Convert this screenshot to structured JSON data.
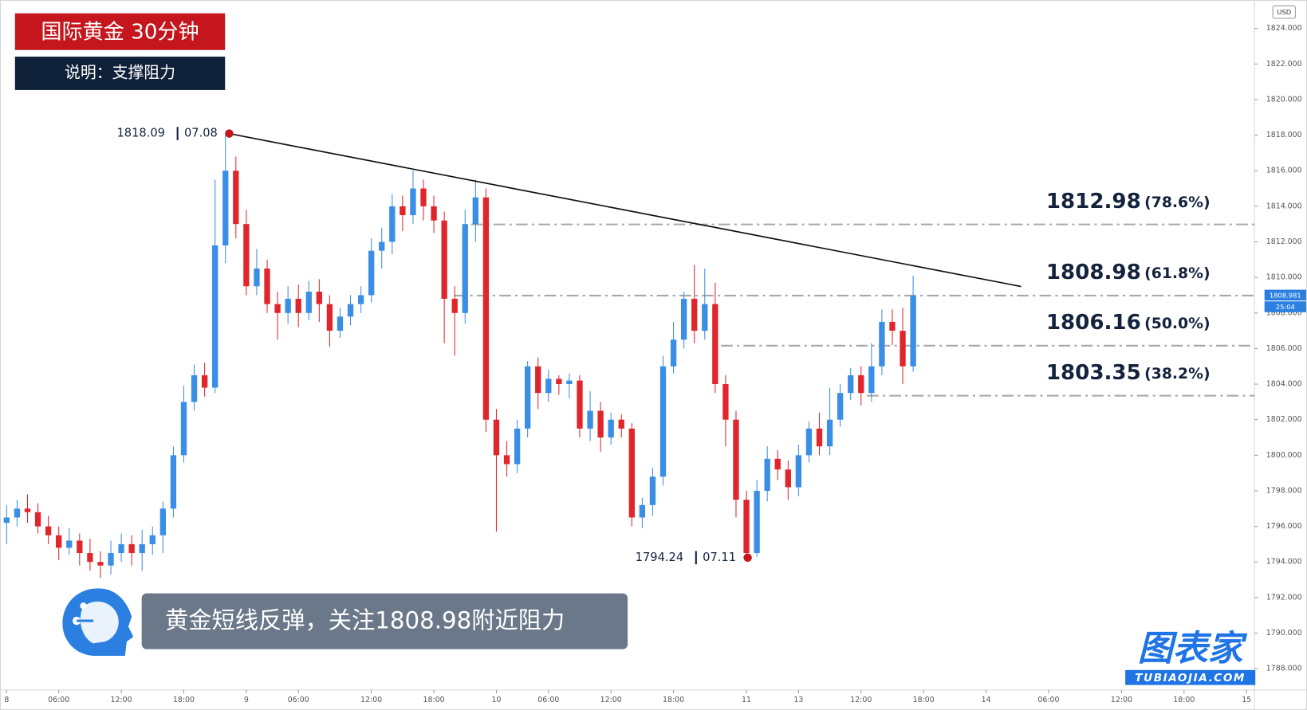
{
  "chart_data": {
    "type": "candlestick",
    "title": "国际黄金 30分钟",
    "subtitle": "说明：支撑阻力",
    "caption": "黄金短线反弹，关注1808.98附近阻力",
    "currency": "USD",
    "countdown": "25:04",
    "last_price": 1808.981,
    "logo": {
      "name": "图表家",
      "url": "TUBIAOJIA.COM"
    },
    "annotations": [
      {
        "date": "07.08"
      },
      {
        "date": "07.11"
      }
    ],
    "up_color": "#3a8ee6",
    "down_color": "#e0262c",
    "trendline": {
      "start": 1818.09,
      "end": 1809.49
    },
    "levels": [
      {
        "value": 1812.98,
        "ratio": "(78.6%)"
      },
      {
        "value": 1808.98,
        "ratio": "(61.8%)"
      },
      {
        "value": 1806.16,
        "ratio": "(50.0%)"
      },
      {
        "value": 1803.35,
        "ratio": "(38.2%)"
      }
    ],
    "ylim": [
      1786.8,
      1825.6
    ],
    "yticks": [
      {
        "value": 1788,
        "label": "1788.000"
      },
      {
        "value": 1790,
        "label": "1790.000"
      },
      {
        "value": 1792,
        "label": "1792.000"
      },
      {
        "value": 1794,
        "label": "1794.000"
      },
      {
        "value": 1796,
        "label": "1796.000"
      },
      {
        "value": 1798,
        "label": "1798.000"
      },
      {
        "value": 1800,
        "label": "1800.000"
      },
      {
        "value": 1802,
        "label": "1802.000"
      },
      {
        "value": 1804,
        "label": "1804.000"
      },
      {
        "value": 1806,
        "label": "1806.000"
      },
      {
        "value": 1808,
        "label": "1808.000"
      },
      {
        "value": 1810,
        "label": "1810.000"
      },
      {
        "value": 1812,
        "label": "1812.000"
      },
      {
        "value": 1814,
        "label": "1814.000"
      },
      {
        "value": 1816,
        "label": "1816.000"
      },
      {
        "value": 1818,
        "label": "1818.000"
      },
      {
        "value": 1820,
        "label": "1820.000"
      },
      {
        "value": 1822,
        "label": "1822.000"
      },
      {
        "value": 1824,
        "label": "1824.000"
      }
    ],
    "categories": [
      "8",
      null,
      null,
      null,
      null,
      "06:00",
      null,
      null,
      null,
      null,
      null,
      "12:00",
      null,
      null,
      null,
      null,
      null,
      "18:00",
      null,
      null,
      null,
      null,
      null,
      "9",
      null,
      null,
      null,
      null,
      "06:00",
      null,
      null,
      null,
      null,
      null,
      null,
      "12:00",
      null,
      null,
      null,
      null,
      null,
      "18:00",
      null,
      null,
      null,
      null,
      null,
      "10",
      null,
      null,
      null,
      null,
      "06:00",
      null,
      null,
      null,
      null,
      null,
      "12:00",
      null,
      null,
      null,
      null,
      null,
      "18:00",
      null,
      null,
      null,
      null,
      null,
      null,
      "11",
      null,
      null,
      null,
      null,
      "13",
      null,
      null,
      null,
      null,
      null,
      "12:00",
      null,
      null,
      null,
      null,
      null,
      "18:00",
      null,
      null,
      null,
      null,
      null,
      "14",
      null,
      null,
      null,
      null,
      null,
      "06:00",
      null,
      null,
      null,
      null,
      null,
      null,
      "12:00",
      null,
      null,
      null,
      null,
      null,
      "18:00",
      null,
      null,
      null,
      null,
      null,
      "15"
    ],
    "open": [
      1796.2,
      1796.5,
      1797,
      1796.8,
      1796,
      1795.5,
      1794.8,
      1795.2,
      1794.5,
      1794,
      1793.8,
      1794.5,
      1795,
      1794.5,
      1795,
      1795.5,
      1797,
      1800,
      1803,
      1804.5,
      1803.8,
      1811.8,
      1816,
      1813,
      1809.5,
      1810.5,
      1808.5,
      1808,
      1808.8,
      1808,
      1809.2,
      1808.5,
      1807,
      1807.8,
      1808.5,
      1809,
      1811.5,
      1812,
      1814,
      1813.5,
      1815,
      1814,
      1813.2,
      1808.8,
      1808,
      1813,
      1814.5,
      1802,
      1800,
      1799.5,
      1801.5,
      1805,
      1803.5,
      1804.3,
      1804,
      1804.2,
      1801.5,
      1802.5,
      1801,
      1802,
      1801.5,
      1796.5,
      1797.2,
      1798.8,
      1805,
      1806.5,
      1808.8,
      1807,
      1808.5,
      1804,
      1802,
      1797.5,
      1794.5,
      1798,
      1799.8,
      1799.2,
      1798.2,
      1800,
      1801.5,
      1800.5,
      1802,
      1803.5,
      1804.5,
      1803.5,
      1805,
      1807.5,
      1807,
      1805,
      null,
      null,
      null,
      null,
      null,
      null,
      null,
      null,
      null,
      null,
      null,
      null,
      null,
      null,
      null,
      null,
      null,
      null,
      null,
      null,
      null,
      null,
      null,
      null,
      null,
      null,
      null,
      null,
      null,
      null,
      null,
      null
    ],
    "high": [
      1797.2,
      1797.5,
      1797.8,
      1797.3,
      1796.6,
      1796,
      1795.9,
      1795.6,
      1795.3,
      1794.6,
      1795.2,
      1795.6,
      1795.5,
      1795.8,
      1796,
      1797.4,
      1800.5,
      1803.9,
      1805.1,
      1805.2,
      1815.5,
      1818.09,
      1816.8,
      1813.8,
      1811.6,
      1811,
      1809.2,
      1809.5,
      1809.6,
      1809.8,
      1809.9,
      1809,
      1808.3,
      1809,
      1809.5,
      1812.2,
      1812.8,
      1814.7,
      1814.6,
      1816,
      1815.5,
      1814.6,
      1813.7,
      1809.5,
      1813.8,
      1815.5,
      1815,
      1802.6,
      1800.8,
      1802,
      1805.3,
      1805.5,
      1804.8,
      1804.5,
      1804.6,
      1804.5,
      1803.6,
      1803,
      1802.4,
      1802.3,
      1801.8,
      1797.6,
      1799.3,
      1805.6,
      1807.5,
      1809.2,
      1810.7,
      1810.5,
      1809.7,
      1804.5,
      1802.5,
      1798,
      1798.6,
      1800.5,
      1800.3,
      1799.7,
      1800.6,
      1801.9,
      1802.4,
      1803.8,
      1804,
      1804.9,
      1805,
      1806.3,
      1808.2,
      1808.2,
      1808.3,
      1810.1,
      null,
      null,
      null,
      null,
      null,
      null,
      null,
      null,
      null,
      null,
      null,
      null,
      null,
      null,
      null,
      null,
      null,
      null,
      null,
      null,
      null,
      null,
      null,
      null,
      null,
      null,
      null,
      null,
      null,
      null,
      null,
      null
    ],
    "low": [
      1795,
      1796,
      1796.2,
      1795.6,
      1795,
      1794.1,
      1794.4,
      1793.8,
      1793.5,
      1793.1,
      1793.3,
      1794,
      1793.8,
      1793.5,
      1794.4,
      1794.5,
      1796.5,
      1799.6,
      1802.5,
      1803.3,
      1803.5,
      1810.8,
      1812.2,
      1809,
      1809,
      1808,
      1806.5,
      1807.4,
      1807.2,
      1807.6,
      1807.5,
      1806.1,
      1806.6,
      1807.3,
      1808,
      1808.6,
      1810.5,
      1811.3,
      1812.6,
      1813,
      1813.2,
      1812.5,
      1806.3,
      1805.6,
      1807.4,
      1812,
      1801.3,
      1795.7,
      1798.8,
      1799,
      1801,
      1802.6,
      1803,
      1803.4,
      1803.2,
      1801,
      1800.8,
      1800.2,
      1800.6,
      1801,
      1796,
      1795.9,
      1796.6,
      1798.3,
      1804.6,
      1806,
      1806.3,
      1806.5,
      1803.5,
      1800.5,
      1796.5,
      1794.24,
      1794.3,
      1797.4,
      1798.6,
      1797.5,
      1797.7,
      1799.6,
      1800,
      1800,
      1801.6,
      1803.1,
      1802.8,
      1803,
      1804.5,
      1806.2,
      1804,
      1804.7,
      null,
      null,
      null,
      null,
      null,
      null,
      null,
      null,
      null,
      null,
      null,
      null,
      null,
      null,
      null,
      null,
      null,
      null,
      null,
      null,
      null,
      null,
      null,
      null,
      null,
      null,
      null,
      null,
      null,
      null,
      null,
      null
    ],
    "close": [
      1796.5,
      1797,
      1796.8,
      1796,
      1795.5,
      1794.8,
      1795.2,
      1794.5,
      1794,
      1793.8,
      1794.5,
      1795,
      1794.5,
      1795,
      1795.5,
      1797,
      1800,
      1803,
      1804.5,
      1803.8,
      1811.8,
      1816,
      1813,
      1809.5,
      1810.5,
      1808.5,
      1808,
      1808.8,
      1808,
      1809.2,
      1808.5,
      1807,
      1807.8,
      1808.5,
      1809,
      1811.5,
      1812,
      1814,
      1813.5,
      1815,
      1814,
      1813.2,
      1808.8,
      1808,
      1813,
      1814.5,
      1802,
      1800,
      1799.5,
      1801.5,
      1805,
      1803.5,
      1804.3,
      1804,
      1804.2,
      1801.5,
      1802.5,
      1801,
      1802,
      1801.5,
      1796.5,
      1797.2,
      1798.8,
      1805,
      1806.5,
      1808.8,
      1807,
      1808.5,
      1804,
      1802,
      1797.5,
      1794.5,
      1798,
      1799.8,
      1799.2,
      1798.2,
      1800,
      1801.5,
      1800.5,
      1802,
      1803.5,
      1804.5,
      1803.5,
      1805,
      1807.5,
      1807,
      1805,
      1808.98,
      null,
      null,
      null,
      null,
      null,
      null,
      null,
      null,
      null,
      null,
      null,
      null,
      null,
      null,
      null,
      null,
      null,
      null,
      null,
      null,
      null,
      null,
      null,
      null,
      null,
      null,
      null,
      null,
      null,
      null,
      null,
      null
    ]
  }
}
